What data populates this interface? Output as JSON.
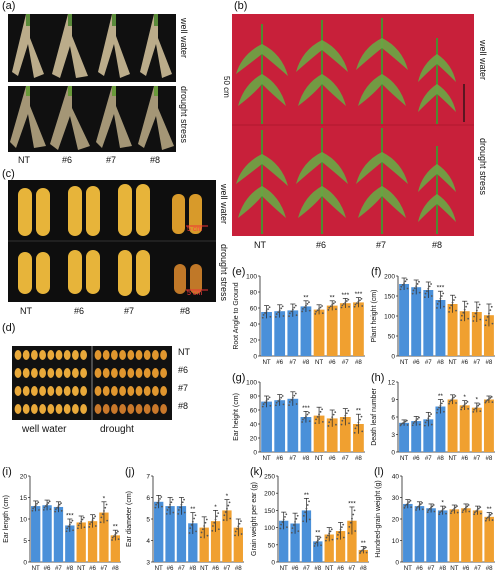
{
  "panel_letters": [
    "(a)",
    "(b)",
    "(c)",
    "(d)",
    "(e)",
    "(f)",
    "(g)",
    "(h)",
    "(i)",
    "(j)",
    "(k)",
    "(l)"
  ],
  "conditions": {
    "well": "well water",
    "drought": "drought stress",
    "drought_short": "drought"
  },
  "genotypes": [
    "NT",
    "#6",
    "#7",
    "#8"
  ],
  "scale": {
    "b": "50 cm",
    "c": "5 cm"
  },
  "colors": {
    "well": "#4a90d9",
    "drought": "#f0a030",
    "bg_red": "#c8203a",
    "point": "#555555"
  },
  "chart_data": [
    {
      "id": "e",
      "type": "bar",
      "ylabel": "Root Angle to Ground",
      "categories": [
        "NT",
        "#6",
        "#7",
        "#8",
        "NT",
        "#6",
        "#7",
        "#8"
      ],
      "values": [
        55,
        56,
        57,
        62,
        58,
        63,
        66,
        67
      ],
      "errors": [
        8,
        8,
        8,
        7,
        6,
        6,
        6,
        6
      ],
      "ylim": [
        0,
        100
      ],
      "yticks": [
        0,
        20,
        40,
        60,
        80,
        100
      ],
      "stars": [
        "",
        "",
        "",
        "**",
        "",
        "**",
        "***",
        "***"
      ]
    },
    {
      "id": "f",
      "type": "bar",
      "ylabel": "Plant height (cm)",
      "categories": [
        "NT",
        "#6",
        "#7",
        "#8",
        "NT",
        "#6",
        "#7",
        "#8"
      ],
      "values": [
        180,
        172,
        165,
        140,
        130,
        112,
        110,
        102
      ],
      "errors": [
        15,
        18,
        20,
        22,
        22,
        25,
        25,
        28
      ],
      "ylim": [
        0,
        200
      ],
      "yticks": [
        0,
        50,
        100,
        150,
        200
      ],
      "stars": [
        "",
        "",
        "",
        "***",
        "",
        "",
        "",
        ""
      ]
    },
    {
      "id": "g",
      "type": "bar",
      "ylabel": "Ear height (cm)",
      "categories": [
        "NT",
        "#6",
        "#7",
        "#8",
        "NT",
        "#6",
        "#7",
        "#8"
      ],
      "values": [
        72,
        74,
        76,
        50,
        52,
        48,
        50,
        40
      ],
      "errors": [
        8,
        8,
        10,
        8,
        12,
        12,
        12,
        14
      ],
      "ylim": [
        0,
        100
      ],
      "yticks": [
        0,
        20,
        40,
        60,
        80,
        100
      ],
      "stars": [
        "",
        "",
        "",
        "***",
        "",
        "",
        "",
        "**"
      ]
    },
    {
      "id": "h",
      "type": "bar",
      "ylabel": "Death leaf number",
      "categories": [
        "NT",
        "#6",
        "#7",
        "#8",
        "NT",
        "#6",
        "#7",
        "#8"
      ],
      "values": [
        5,
        5.3,
        5.6,
        7.8,
        9,
        8,
        7.6,
        9
      ],
      "errors": [
        0.5,
        0.8,
        1.2,
        1.2,
        0.8,
        0.8,
        0.8,
        0.6
      ],
      "ylim": [
        0,
        12
      ],
      "yticks": [
        0,
        3,
        6,
        9,
        12
      ],
      "stars": [
        "",
        "",
        "",
        "**",
        "",
        "*",
        "*",
        ""
      ]
    },
    {
      "id": "i",
      "type": "bar",
      "ylabel": "Ear length (cm)",
      "categories": [
        "NT",
        "#6",
        "#7",
        "#8",
        "NT",
        "#6",
        "#7",
        "#8"
      ],
      "values": [
        13,
        13.2,
        12.8,
        8.5,
        9.2,
        9.5,
        11.5,
        6.2
      ],
      "errors": [
        1.2,
        1.2,
        1.2,
        1.5,
        1.5,
        1.5,
        2.5,
        1.2
      ],
      "ylim": [
        0,
        20
      ],
      "yticks": [
        0,
        5,
        10,
        15,
        20
      ],
      "stars": [
        "",
        "",
        "",
        "***",
        "",
        "",
        "*",
        "**"
      ]
    },
    {
      "id": "j",
      "type": "bar",
      "ylabel": "Ear diameter (cm)",
      "categories": [
        "NT",
        "#6",
        "#7",
        "#8",
        "NT",
        "#6",
        "#7",
        "#8"
      ],
      "values": [
        5.8,
        5.6,
        5.6,
        4.8,
        4.6,
        4.9,
        5.4,
        4.6
      ],
      "errors": [
        0.3,
        0.4,
        0.4,
        0.5,
        0.5,
        0.5,
        0.5,
        0.4
      ],
      "ylim": [
        3,
        7
      ],
      "yticks": [
        3,
        4,
        5,
        6,
        7
      ],
      "stars": [
        "",
        "",
        "",
        "**",
        "",
        "*",
        "*",
        ""
      ]
    },
    {
      "id": "k",
      "type": "bar",
      "ylabel": "Grain weight per ear (g)",
      "categories": [
        "NT",
        "#6",
        "#7",
        "#8",
        "NT",
        "#6",
        "#7",
        "#8"
      ],
      "values": [
        120,
        112,
        150,
        60,
        80,
        90,
        120,
        35
      ],
      "errors": [
        25,
        30,
        35,
        15,
        20,
        25,
        40,
        10
      ],
      "ylim": [
        0,
        250
      ],
      "yticks": [
        0,
        50,
        100,
        150,
        200,
        250
      ],
      "stars": [
        "",
        "",
        "**",
        "**",
        "",
        "",
        "***",
        "**"
      ]
    },
    {
      "id": "l",
      "type": "bar",
      "ylabel": "Hundred-grain weight (g)",
      "categories": [
        "NT",
        "#6",
        "#7",
        "#8",
        "NT",
        "#6",
        "#7",
        "#8"
      ],
      "values": [
        27,
        26,
        25,
        24,
        24.5,
        25,
        24,
        21
      ],
      "errors": [
        2,
        2,
        2,
        2,
        2,
        2,
        2,
        2
      ],
      "ylim": [
        0,
        40
      ],
      "yticks": [
        0,
        10,
        20,
        30,
        40
      ],
      "stars": [
        "",
        "",
        "",
        "*",
        "",
        "",
        "",
        "**"
      ]
    }
  ]
}
